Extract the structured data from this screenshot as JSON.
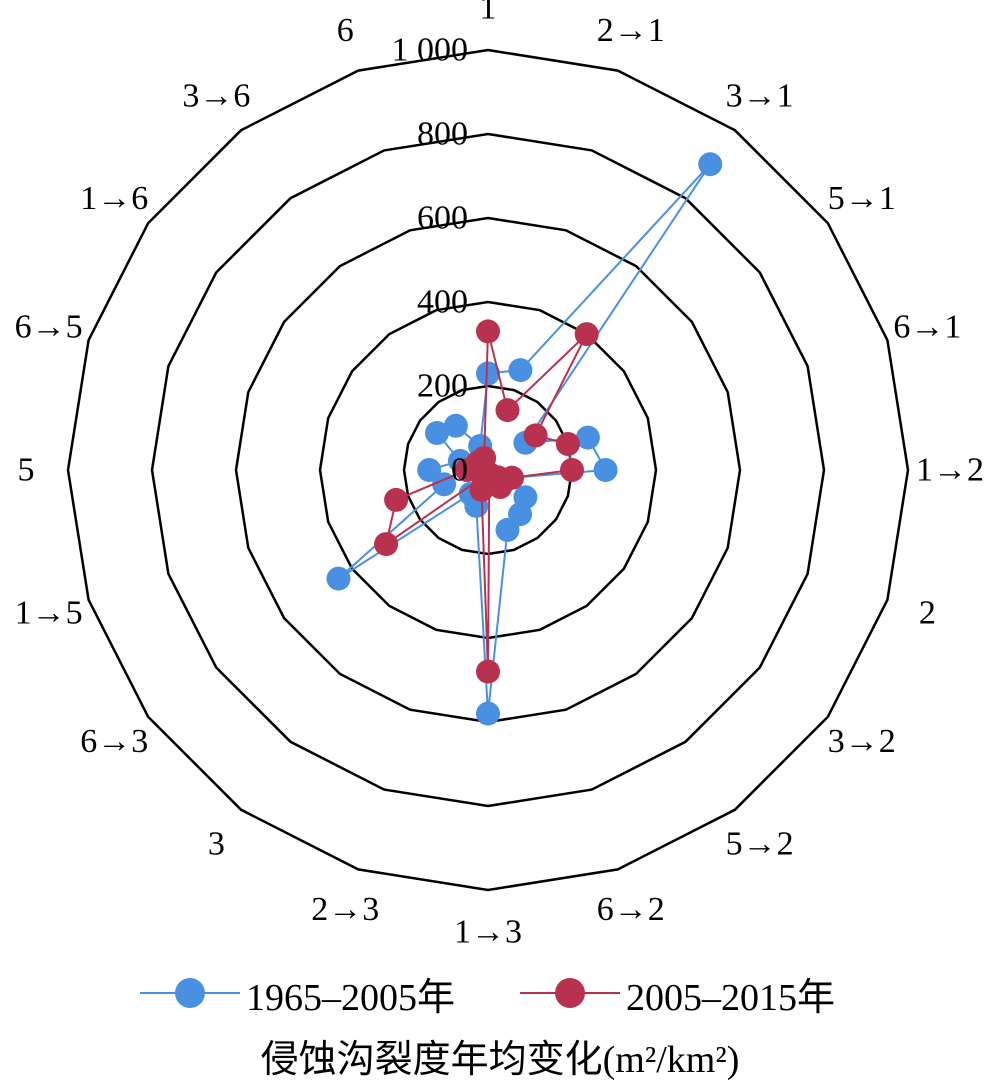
{
  "chart_data": {
    "type": "radar",
    "categories": [
      "1",
      "2→1",
      "3→1",
      "5→1",
      "6→1",
      "1→2",
      "2",
      "3→2",
      "5→2",
      "6→2",
      "1→3",
      "2→3",
      "3",
      "6→3",
      "1→5",
      "5",
      "6→5",
      "1→6",
      "3→6",
      "6"
    ],
    "rlim": [
      0,
      1000
    ],
    "rticks": [
      "0",
      "200",
      "400",
      "600",
      "800",
      "1 000"
    ],
    "grid": true,
    "legend_position": "bottom",
    "xlabel": "侵蚀沟裂度年均变化(m²/km²)",
    "series": [
      {
        "name": "1965–2005年",
        "color": "#4a90e2",
        "values": [
          230,
          250,
          900,
          110,
          250,
          280,
          60,
          110,
          130,
          150,
          580,
          90,
          70,
          440,
          110,
          140,
          70,
          150,
          130,
          60
        ]
      },
      {
        "name": "2005–2015年",
        "color": "#b8324f",
        "values": [
          330,
          150,
          400,
          140,
          200,
          200,
          60,
          30,
          50,
          10,
          480,
          50,
          20,
          300,
          230,
          50,
          20,
          30,
          20,
          30
        ]
      }
    ]
  }
}
